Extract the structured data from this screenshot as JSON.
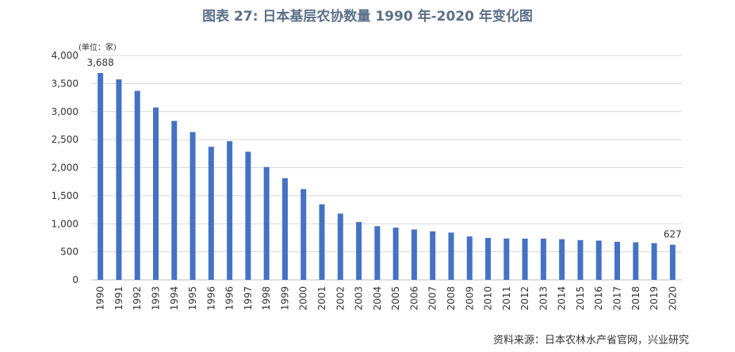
{
  "title": "图表 27: 日本基层农协数量 1990 年-2020 年变化图",
  "source": "资料来源：日本农林水产省官网，兴业研究",
  "chart_data": {
    "type": "bar",
    "title": "图表 27: 日本基层农协数量 1990 年-2020 年变化图",
    "unit_label": "(单位：家)",
    "xlabel": "",
    "ylabel": "",
    "ylim": [
      0,
      4000
    ],
    "y_ticks": [
      0,
      500,
      1000,
      1500,
      2000,
      2500,
      3000,
      3500,
      4000
    ],
    "y_tick_labels": [
      "0",
      "500",
      "1,000",
      "1,500",
      "2,000",
      "2,500",
      "3,000",
      "3,500",
      "4,000"
    ],
    "grid": true,
    "bar_color": "#4472C4",
    "categories": [
      "1990",
      "1991",
      "1992",
      "1993",
      "1994",
      "1995",
      "1996",
      "1996",
      "1997",
      "1998",
      "1999",
      "2000",
      "2001",
      "2002",
      "2003",
      "2004",
      "2005",
      "2006",
      "2007",
      "2008",
      "2009",
      "2010",
      "2011",
      "2012",
      "2013",
      "2014",
      "2015",
      "2016",
      "2017",
      "2018",
      "2019",
      "2020"
    ],
    "values": [
      3688,
      3574,
      3370,
      3073,
      2834,
      2635,
      2373,
      2472,
      2284,
      2012,
      1813,
      1618,
      1347,
      1181,
      1031,
      957,
      930,
      898,
      866,
      843,
      774,
      748,
      737,
      735,
      736,
      725,
      710,
      700,
      679,
      670,
      655,
      627
    ],
    "data_labels": [
      {
        "index": 0,
        "text": "3,688"
      },
      {
        "index": 31,
        "text": "627"
      }
    ]
  }
}
